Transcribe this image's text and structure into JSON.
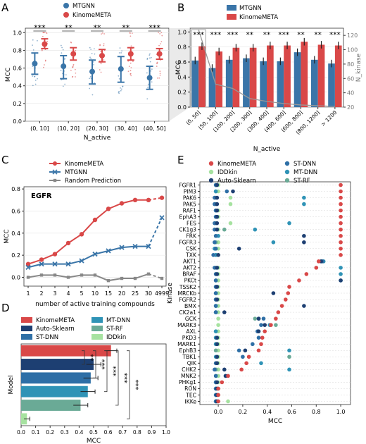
{
  "chart_data": [
    {
      "panel": "A",
      "type": "scatter",
      "legend": [
        {
          "name": "MTGNN",
          "color": "#3a75a8"
        },
        {
          "name": "KinomeMETA",
          "color": "#d94848"
        }
      ],
      "categories": [
        "(0, 10]",
        "(10, 20]",
        "(20, 30]",
        "(30, 40]",
        "(40, 50]"
      ],
      "series": [
        {
          "name": "MTGNN",
          "means": [
            0.65,
            0.62,
            0.56,
            0.59,
            0.49
          ],
          "err_low": [
            0.53,
            0.48,
            0.42,
            0.44,
            0.36
          ],
          "err_high": [
            0.77,
            0.74,
            0.69,
            0.73,
            0.62
          ]
        },
        {
          "name": "KinomeMETA",
          "means": [
            0.87,
            0.76,
            0.74,
            0.76,
            0.76
          ],
          "err_low": [
            0.82,
            0.69,
            0.67,
            0.69,
            0.7
          ],
          "err_high": [
            0.93,
            0.83,
            0.81,
            0.83,
            0.82
          ]
        }
      ],
      "significance": [
        "***",
        "**",
        "**",
        "**",
        "***"
      ],
      "xlabel": "N_active",
      "ylabel": "MCC",
      "ylim": [
        0.0,
        1.05
      ],
      "yticks": [
        "0.0",
        "0.2",
        "0.4",
        "0.6",
        "0.8",
        "1.0"
      ]
    },
    {
      "panel": "B",
      "type": "bar",
      "legend": [
        {
          "name": "MTGNN",
          "color": "#3a75a8"
        },
        {
          "name": "KinomeMETA",
          "color": "#d94848"
        }
      ],
      "categories": [
        "(0, 50]",
        "(50, 100]",
        "(100, 200]",
        "(200, 300]",
        "(300, 400]",
        "(400, 600]",
        "(600, 800]",
        "(800, 1200]",
        "> 1200"
      ],
      "series": [
        {
          "name": "MTGNN",
          "values": [
            0.62,
            0.52,
            0.63,
            0.65,
            0.61,
            0.61,
            0.73,
            0.63,
            0.58
          ]
        },
        {
          "name": "KinomeMETA",
          "values": [
            0.81,
            0.74,
            0.79,
            0.79,
            0.82,
            0.82,
            0.87,
            0.83,
            0.82
          ]
        }
      ],
      "line_right_axis": {
        "values": [
          128,
          52,
          46,
          32,
          28,
          25,
          23,
          22,
          21
        ]
      },
      "significance": [
        "***",
        "***",
        "***",
        "**",
        "**",
        "***",
        "**",
        "**",
        "***"
      ],
      "xlabel": "N_active",
      "ylabel": "MCC",
      "ylabel_right": "N_kinase",
      "ylim": [
        0.0,
        1.05
      ],
      "yticks": [
        "0.0",
        "0.2",
        "0.4",
        "0.6",
        "0.8",
        "1.0"
      ],
      "ylim_right": [
        20,
        130
      ],
      "yticks_right": [
        "20",
        "40",
        "60",
        "80",
        "100",
        "120"
      ]
    },
    {
      "panel": "C",
      "type": "line",
      "title": "EGFR",
      "categories": [
        "1",
        "2",
        "3",
        "4",
        "5",
        "10",
        "15",
        "20",
        "25",
        "30",
        "4999"
      ],
      "series": [
        {
          "name": "KinomeMETA",
          "color": "#d94848",
          "values": [
            0.12,
            0.16,
            0.21,
            0.31,
            0.39,
            0.52,
            0.62,
            0.67,
            0.7,
            0.7,
            0.72
          ]
        },
        {
          "name": "MTGNN",
          "color": "#3a75a8",
          "values": [
            0.09,
            0.12,
            0.12,
            0.12,
            0.15,
            0.21,
            0.24,
            0.27,
            0.28,
            0.28,
            0.54
          ]
        },
        {
          "name": "Random Prediction",
          "color": "#888888",
          "values": [
            0.0,
            0.02,
            0.02,
            0.0,
            0.02,
            0.02,
            -0.03,
            -0.01,
            -0.01,
            0.03,
            -0.01
          ]
        }
      ],
      "xlabel": "number of active training compounds",
      "ylabel": "MCC",
      "ylim": [
        -0.08,
        0.82
      ],
      "yticks": [
        "0.0",
        "0.2",
        "0.4",
        "0.6",
        "0.8"
      ]
    },
    {
      "panel": "D",
      "type": "bar",
      "orientation": "horizontal",
      "legend": [
        {
          "name": "KinomeMETA",
          "color": "#d94848"
        },
        {
          "name": "MT-DNN",
          "color": "#2f93b6"
        },
        {
          "name": "Auto-Sklearn",
          "color": "#1d3f72"
        },
        {
          "name": "ST-RF",
          "color": "#6aaa96"
        },
        {
          "name": "ST-DNN",
          "color": "#2e6fa6"
        },
        {
          "name": "IDDkin",
          "color": "#a6e2a0"
        }
      ],
      "categories": [
        "KinomeMETA",
        "Auto-Sklearn",
        "ST-DNN",
        "MT-DNN",
        "ST-RF",
        "IDDkin"
      ],
      "values": [
        0.62,
        0.5,
        0.48,
        0.46,
        0.41,
        0.04
      ],
      "errors": [
        0.04,
        0.05,
        0.05,
        0.05,
        0.05,
        0.02
      ],
      "significance": [
        "**",
        "***",
        "***",
        "***",
        "***"
      ],
      "xlabel": "MCC",
      "ylabel": "Model",
      "xlim": [
        0.0,
        1.0
      ],
      "xticks": [
        "0.0",
        "0.1",
        "0.2",
        "0.3",
        "0.4",
        "0.5",
        "0.6",
        "0.7",
        "0.8",
        "0.9",
        "1.0"
      ]
    },
    {
      "panel": "E",
      "type": "scatter",
      "legend": [
        {
          "name": "KinomeMETA",
          "color": "#d94848"
        },
        {
          "name": "ST-DNN",
          "color": "#2e6fa6"
        },
        {
          "name": "IDDkin",
          "color": "#a6e2a0"
        },
        {
          "name": "MT-DNN",
          "color": "#2f93b6"
        },
        {
          "name": "Auto-Sklearn",
          "color": "#1d3f72"
        },
        {
          "name": "ST-RF",
          "color": "#6aaa96"
        }
      ],
      "categories": [
        "FGFR1",
        "PIM3",
        "PAK6",
        "PAK5",
        "RAF1",
        "EphA3",
        "FES",
        "CK1g3",
        "FRK",
        "FGFR3",
        "CSK",
        "TXK",
        "AKT1",
        "AKT2",
        "BRAF",
        "PKCt",
        "TSSK2",
        "MRCKb",
        "FGFR2",
        "BMX",
        "CK2a1",
        "GCK",
        "MARK3",
        "AXL",
        "PKD3",
        "MARK1",
        "EphB3",
        "TBK1",
        "QIK",
        "CHK2",
        "MNK2",
        "PHKg1",
        "RON",
        "TEC",
        "IKKe"
      ],
      "series": [
        {
          "name": "KinomeMETA",
          "values": [
            1.0,
            1.0,
            1.0,
            1.0,
            1.0,
            1.0,
            1.0,
            1.0,
            1.0,
            1.0,
            1.0,
            1.0,
            0.82,
            0.8,
            0.72,
            0.66,
            0.58,
            0.57,
            0.55,
            0.52,
            0.49,
            0.47,
            0.43,
            0.38,
            0.36,
            0.35,
            0.33,
            0.25,
            0.23,
            0.19,
            0.08,
            0.03,
            0.0,
            0.0,
            0.0
          ]
        },
        {
          "name": "ST-DNN",
          "values": [
            -0.02,
            0.07,
            -0.03,
            -0.03,
            -0.02,
            -0.02,
            -0.03,
            -0.03,
            -0.02,
            -0.03,
            -0.02,
            -0.04,
            0.85,
            -0.03,
            -0.02,
            -0.02,
            -0.02,
            -0.02,
            -0.02,
            -0.02,
            -0.02,
            0.37,
            0.35,
            0.32,
            0.33,
            0.28,
            0.17,
            0.2,
            -0.02,
            -0.03,
            -0.02,
            -0.02,
            -0.02,
            -0.02,
            -0.02
          ]
        },
        {
          "name": "IDDkin",
          "values": [
            0.0,
            0.0,
            0.1,
            0.1,
            0.0,
            0.0,
            0.1,
            0.0,
            0.0,
            0.0,
            0.0,
            0.0,
            0.85,
            0.0,
            0.0,
            0.0,
            0.0,
            0.0,
            0.0,
            0.0,
            0.0,
            0.0,
            0.0,
            0.0,
            0.0,
            0.0,
            0.0,
            0.0,
            0.0,
            0.0,
            0.0,
            0.0,
            0.0,
            0.0,
            0.08
          ]
        },
        {
          "name": "MT-DNN",
          "values": [
            -0.02,
            -0.02,
            0.7,
            0.7,
            -0.02,
            -0.02,
            0.58,
            0.3,
            0.0,
            0.45,
            -0.03,
            -0.02,
            0.86,
            1.0,
            1.0,
            1.0,
            -0.02,
            -0.02,
            -0.02,
            -0.02,
            -0.02,
            0.33,
            0.42,
            -0.02,
            -0.02,
            -0.02,
            0.58,
            -0.02,
            0.35,
            0.58,
            0.06,
            -0.02,
            -0.02,
            -0.02,
            -0.02
          ]
        },
        {
          "name": "Auto-Sklearn",
          "values": [
            -0.01,
            0.12,
            -0.01,
            -0.01,
            -0.01,
            -0.01,
            -0.01,
            -0.01,
            0.7,
            0.7,
            0.17,
            0.0,
            0.84,
            -0.01,
            -0.01,
            1.0,
            -0.01,
            0.45,
            -0.01,
            0.7,
            0.05,
            0.33,
            0.38,
            0.33,
            -0.01,
            -0.01,
            0.22,
            -0.01,
            -0.01,
            0.05,
            0.06,
            -0.01,
            -0.01,
            -0.01,
            -0.01
          ]
        },
        {
          "name": "ST-RF",
          "values": [
            -0.02,
            -0.02,
            -0.02,
            -0.02,
            -0.02,
            -0.02,
            -0.02,
            0.05,
            -0.02,
            -0.02,
            -0.02,
            -0.02,
            0.84,
            -0.02,
            -0.02,
            -0.02,
            -0.02,
            -0.02,
            -0.02,
            -0.02,
            -0.02,
            0.3,
            0.47,
            -0.02,
            -0.02,
            -0.02,
            -0.02,
            0.58,
            -0.02,
            -0.02,
            -0.02,
            -0.02,
            -0.02,
            -0.02,
            -0.02
          ]
        }
      ],
      "xlabel": "MCC",
      "ylabel": "Kinase",
      "xlim": [
        -0.15,
        1.08
      ],
      "xticks": [
        "0.0",
        "0.2",
        "0.4",
        "0.6",
        "0.8",
        "1.0"
      ]
    }
  ],
  "panel_labels": [
    "A",
    "B",
    "C",
    "D",
    "E"
  ]
}
